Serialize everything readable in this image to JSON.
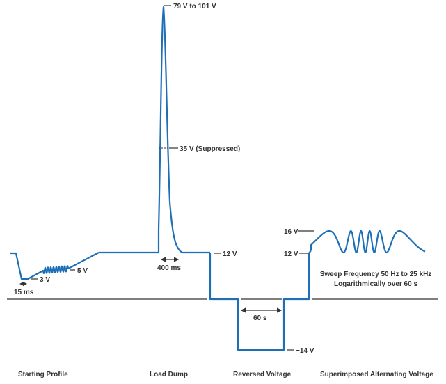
{
  "labels": {
    "peak": "79 V to 101 V",
    "suppressed": "35 V (Suppressed)",
    "nominal_12v": "12 V",
    "load_dump_duration": "400 ms",
    "start_duration": "15 ms",
    "start_3v": "3 V",
    "start_5v": "5 V",
    "ripple_16v": "16 V",
    "ripple_12v": "12 V",
    "reverse_duration": "60 s",
    "reverse_voltage": "−14 V",
    "sweep_line1": "Sweep Frequency 50 Hz to 25 kHz",
    "sweep_line2": "Logarithmically over 60 s"
  },
  "sections": [
    "Starting Profile",
    "Load Dump",
    "Reversed Voltage",
    "Superimposed Alternating Voltage"
  ],
  "colors": {
    "waveform": "#1f6fb7",
    "annotation": "#333333"
  }
}
